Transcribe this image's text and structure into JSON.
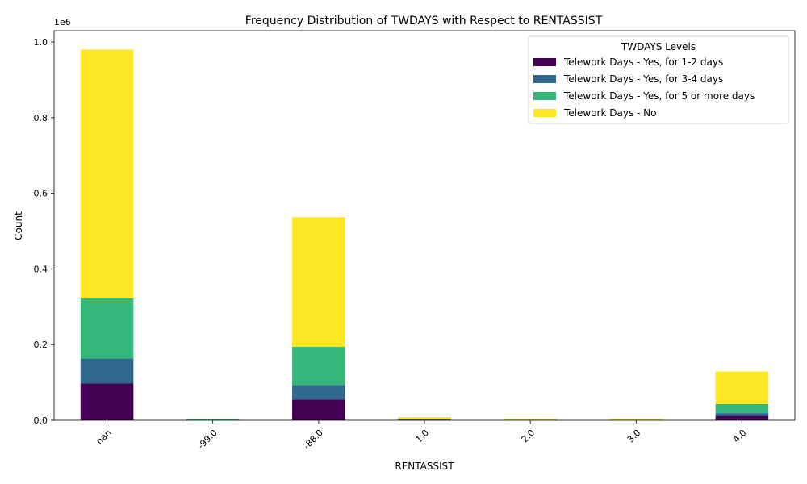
{
  "chart_data": {
    "type": "bar",
    "stacked": true,
    "title": "Frequency Distribution of TWDAYS with Respect to RENTASSIST",
    "xlabel": "RENTASSIST",
    "ylabel": "Count",
    "y_offset_label": "1e6",
    "y_scale": 1000000,
    "ylim": [
      0,
      1030000
    ],
    "yticks": [
      0,
      200000,
      400000,
      600000,
      800000,
      1000000
    ],
    "ytick_labels": [
      "0.0",
      "0.2",
      "0.4",
      "0.6",
      "0.8",
      "1.0"
    ],
    "categories": [
      "nan",
      "-99.0",
      "-88.0",
      "1.0",
      "2.0",
      "3.0",
      "4.0"
    ],
    "legend_title": "TWDAYS Levels",
    "legend_position": "top-right",
    "grid": false,
    "series": [
      {
        "name": "Telework Days - Yes, for 1-2 days",
        "color": "#440154",
        "values": [
          97000,
          400,
          55000,
          1500,
          600,
          500,
          12000
        ]
      },
      {
        "name": "Telework Days - Yes, for 3-4 days",
        "color": "#31688e",
        "values": [
          66000,
          300,
          38000,
          900,
          300,
          300,
          7000
        ]
      },
      {
        "name": "Telework Days - Yes, for 5 or more days",
        "color": "#35b779",
        "values": [
          159000,
          1500,
          101000,
          1100,
          400,
          400,
          24000
        ]
      },
      {
        "name": "Telework Days - No",
        "color": "#fde725",
        "values": [
          658000,
          300,
          343000,
          5000,
          2200,
          2000,
          86000
        ]
      }
    ]
  }
}
